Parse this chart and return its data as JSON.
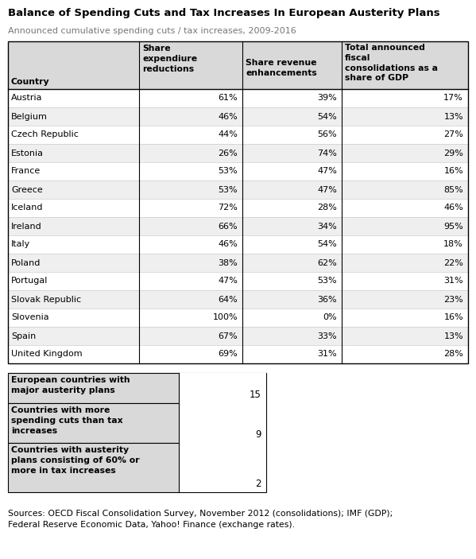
{
  "title": "Balance of Spending Cuts and Tax Increases In European Austerity Plans",
  "subtitle": "Announced cumulative spending cuts / tax increases, 2009-2016",
  "countries": [
    "Austria",
    "Belgium",
    "Czech Republic",
    "Estonia",
    "France",
    "Greece",
    "Iceland",
    "Ireland",
    "Italy",
    "Poland",
    "Portugal",
    "Slovak Republic",
    "Slovenia",
    "Spain",
    "United Kingdom"
  ],
  "share_exp": [
    "61%",
    "46%",
    "44%",
    "26%",
    "53%",
    "53%",
    "72%",
    "66%",
    "46%",
    "38%",
    "47%",
    "64%",
    "100%",
    "67%",
    "69%"
  ],
  "share_rev": [
    "39%",
    "54%",
    "56%",
    "74%",
    "47%",
    "47%",
    "28%",
    "34%",
    "54%",
    "62%",
    "53%",
    "36%",
    "0%",
    "33%",
    "31%"
  ],
  "total_gdp": [
    "17%",
    "13%",
    "27%",
    "29%",
    "16%",
    "85%",
    "46%",
    "95%",
    "18%",
    "22%",
    "31%",
    "23%",
    "16%",
    "13%",
    "28%"
  ],
  "summary_labels": [
    "European countries with\nmajor austerity plans",
    "Countries with more\nspending cuts than tax\nincreases",
    "Countries with austerity\nplans consisting of 60% or\nmore in tax increases"
  ],
  "summary_values": [
    "15",
    "9",
    "2"
  ],
  "source_text": "Sources: OECD Fiscal Consolidation Survey, November 2012 (consolidations); IMF (GDP);\nFederal Reserve Economic Data, Yahoo! Finance (exchange rates).",
  "header_bg": "#d9d9d9",
  "alt_row_bg": "#efefef",
  "white_row_bg": "#ffffff",
  "border_color": "#000000",
  "text_color": "#000000",
  "title_color": "#000000",
  "subtitle_color": "#777777",
  "col1_header": "Share\nexpendiure\nreductions",
  "col2_header": "Share revenue\nenhancements",
  "col3_header": "Total announced\nfiscal\nconsolidations as a\nshare of GDP",
  "country_header": "Country"
}
